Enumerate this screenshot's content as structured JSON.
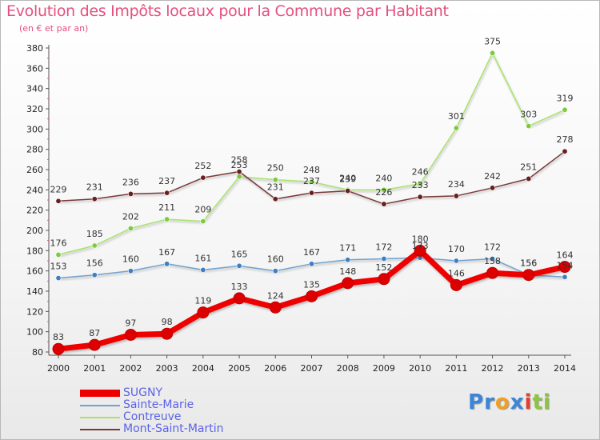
{
  "title": "Evolution des Impôts locaux pour la Commune par Habitant",
  "subtitle": "(en € et par an)",
  "brand": {
    "letters": [
      {
        "ch": "P",
        "color": "#3a86d9"
      },
      {
        "ch": "r",
        "color": "#3a86d9"
      },
      {
        "ch": "o",
        "color": "#f0a020"
      },
      {
        "ch": "x",
        "color": "#3a86d9"
      },
      {
        "ch": "i",
        "color": "#e0402f"
      },
      {
        "ch": "t",
        "color": "#8cc63f"
      },
      {
        "ch": "i",
        "color": "#8cc63f"
      }
    ]
  },
  "chart_data": {
    "type": "line",
    "title": "Evolution des Impôts locaux pour la Commune par Habitant",
    "subtitle": "(en € et par an)",
    "xlabel": "",
    "ylabel": "",
    "x": [
      "2000",
      "2001",
      "2002",
      "2003",
      "2004",
      "2005",
      "2006",
      "2007",
      "2008",
      "2009",
      "2010",
      "2011",
      "2012",
      "2013",
      "2014"
    ],
    "ylim": [
      80,
      380
    ],
    "yticks": [
      80,
      100,
      120,
      140,
      160,
      180,
      200,
      220,
      240,
      260,
      280,
      300,
      320,
      340,
      360,
      380
    ],
    "grid": false,
    "legend_position": "bottom-left",
    "series": [
      {
        "name": "SUGNY",
        "color": "#ee0000",
        "marker": "#dd0000",
        "width": "thick",
        "values": [
          83,
          87,
          97,
          98,
          119,
          133,
          124,
          135,
          148,
          152,
          180,
          146,
          158,
          156,
          164
        ]
      },
      {
        "name": "Sainte-Marie",
        "color": "#6fa2cf",
        "marker": "#3e7fc0",
        "width": "thin",
        "values": [
          153,
          156,
          160,
          167,
          161,
          165,
          160,
          167,
          171,
          172,
          173,
          170,
          172,
          156,
          154
        ]
      },
      {
        "name": "Contreuve",
        "color": "#a6e36a",
        "marker": "#7dca3d",
        "width": "thin",
        "values": [
          176,
          185,
          202,
          211,
          209,
          253,
          250,
          248,
          240,
          240,
          246,
          301,
          375,
          303,
          319
        ]
      },
      {
        "name": "Mont-Saint-Martin",
        "color": "#7a3838",
        "marker": "#6a1f1f",
        "width": "thin",
        "values": [
          229,
          231,
          236,
          237,
          252,
          258,
          231,
          237,
          239,
          226,
          233,
          234,
          242,
          251,
          278
        ]
      }
    ],
    "data_labels": [
      [
        "83",
        "87",
        "97",
        "98",
        "119",
        "133",
        "124",
        "135",
        "148",
        "152",
        "180",
        "146",
        "158",
        "156",
        "164"
      ],
      [
        "153",
        "156",
        "160",
        "167",
        "161",
        "165",
        "160",
        "167",
        "171",
        "172",
        "173",
        "170",
        "172",
        "156",
        "154"
      ],
      [
        "176",
        "185",
        "202",
        "211",
        "209",
        "253",
        "250",
        "248",
        "240",
        "240",
        "246",
        "301",
        "375",
        "303",
        "319"
      ],
      [
        "229",
        "231",
        "236",
        "237",
        "252",
        "258",
        "231",
        "237",
        "239",
        "226",
        "233",
        "234",
        "242",
        "251",
        "278"
      ]
    ]
  }
}
